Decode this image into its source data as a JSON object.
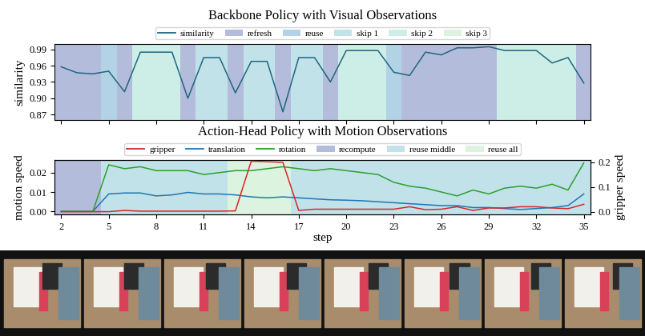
{
  "chart_data": [
    {
      "type": "line",
      "title": "Backbone Policy with Visual Observations",
      "y_label": "similarity",
      "legend": "upper center",
      "tick_labels": "y",
      "x": [
        2,
        3,
        4,
        5,
        6,
        7,
        8,
        9,
        10,
        11,
        12,
        13,
        14,
        15,
        16,
        17,
        18,
        19,
        20,
        21,
        22,
        23,
        24,
        25,
        26,
        27,
        28,
        29,
        30,
        31,
        32,
        33,
        34,
        35
      ],
      "xlim": [
        1.6,
        35.4
      ],
      "xticks": [
        2,
        5,
        8,
        11,
        14,
        17,
        20,
        23,
        26,
        29,
        32,
        35
      ],
      "ylim": [
        0.86,
        1.0
      ],
      "yticks": [
        {
          "value": 0.87,
          "label": "0.87"
        },
        {
          "value": 0.9,
          "label": "0.90"
        },
        {
          "value": 0.93,
          "label": "0.93"
        },
        {
          "value": 0.96,
          "label": "0.96"
        },
        {
          "value": 0.99,
          "label": "0.99"
        }
      ],
      "series": [
        {
          "name": "similarity",
          "color": "#1f6680",
          "values": [
            0.958,
            0.947,
            0.945,
            0.95,
            0.912,
            0.985,
            0.985,
            0.985,
            0.9,
            0.975,
            0.975,
            0.91,
            0.968,
            0.968,
            0.875,
            0.975,
            0.975,
            0.93,
            0.988,
            0.988,
            0.988,
            0.948,
            0.942,
            0.985,
            0.98,
            0.993,
            0.993,
            0.995,
            0.988,
            0.988,
            0.988,
            0.965,
            0.975,
            0.928
          ]
        },
        {
          "name": "refresh",
          "type": "span",
          "color": "#b4bcdb",
          "x": [
            2,
            3,
            4,
            6,
            10,
            13,
            16,
            19,
            24,
            25,
            26,
            27,
            28,
            29,
            35
          ]
        },
        {
          "name": "reuse",
          "type": "span",
          "color": "#b2d3e6",
          "x": [
            5,
            23
          ]
        },
        {
          "name": "skip 1",
          "type": "span",
          "color": "#c2e2ea",
          "x": [
            11,
            12,
            14,
            15,
            17,
            18
          ]
        },
        {
          "name": "skip 2",
          "type": "span",
          "color": "#cdeee6",
          "x": [
            7,
            8,
            9,
            20,
            21,
            22,
            30,
            31,
            32,
            33,
            34
          ]
        },
        {
          "name": "skip 3",
          "type": "span",
          "color": "#dcf3e0",
          "x": []
        }
      ]
    },
    {
      "type": "line",
      "title": "Action-Head Policy with Motion Observations",
      "x_label": "step",
      "y_label": "motion speed",
      "y2_label": "gripper speed",
      "legend": "upper center",
      "x": [
        2,
        3,
        4,
        5,
        6,
        7,
        8,
        9,
        10,
        11,
        12,
        13,
        14,
        15,
        16,
        17,
        18,
        19,
        20,
        21,
        22,
        23,
        24,
        25,
        26,
        27,
        28,
        29,
        30,
        31,
        32,
        33,
        34,
        35
      ],
      "xlim": [
        1.6,
        35.4
      ],
      "xticks": [
        2,
        5,
        8,
        11,
        14,
        17,
        20,
        23,
        26,
        29,
        32,
        35
      ],
      "ylim": [
        -0.0015,
        0.0265
      ],
      "yticks": [
        {
          "value": 0.0,
          "label": "0.00"
        },
        {
          "value": 0.01,
          "label": "0.01"
        },
        {
          "value": 0.02,
          "label": "0.02"
        }
      ],
      "y2lim": [
        -0.011,
        0.21
      ],
      "y2ticks": [
        0.0,
        0.1,
        0.2
      ],
      "series": [
        {
          "name": "gripper",
          "color": "#d62728",
          "axis": "y2",
          "values": [
            0,
            0,
            0,
            0,
            0.005,
            0.002,
            0.002,
            0.002,
            0.002,
            0.002,
            0.002,
            0.003,
            0.205,
            0.203,
            0.2,
            0.005,
            0.01,
            0.01,
            0.01,
            0.01,
            0.01,
            0.01,
            0.02,
            0.008,
            0.01,
            0.02,
            0.005,
            0.015,
            0.015,
            0.02,
            0.02,
            0.015,
            0.012,
            0.03
          ]
        },
        {
          "name": "translation",
          "color": "#1f77b4",
          "values": [
            0,
            0,
            0,
            0.009,
            0.0095,
            0.0095,
            0.008,
            0.0085,
            0.0098,
            0.009,
            0.009,
            0.0085,
            0.0075,
            0.007,
            0.0075,
            0.007,
            0.0065,
            0.006,
            0.0058,
            0.0055,
            0.005,
            0.0045,
            0.004,
            0.0035,
            0.003,
            0.003,
            0.002,
            0.002,
            0.0015,
            0.001,
            0.0015,
            0.002,
            0.003,
            0.009
          ]
        },
        {
          "name": "rotation",
          "color": "#2ca02c",
          "values": [
            0,
            0,
            0,
            0.024,
            0.022,
            0.023,
            0.021,
            0.021,
            0.021,
            0.019,
            0.02,
            0.021,
            0.021,
            0.022,
            0.023,
            0.022,
            0.021,
            0.022,
            0.021,
            0.02,
            0.019,
            0.015,
            0.013,
            0.012,
            0.01,
            0.008,
            0.011,
            0.009,
            0.012,
            0.013,
            0.012,
            0.014,
            0.011,
            0.025
          ]
        },
        {
          "name": "recompute",
          "type": "span",
          "color": "#b4bcdb",
          "x": [
            2,
            3,
            4
          ]
        },
        {
          "name": "reuse middle",
          "type": "span",
          "color": "#c2e2ea",
          "x": [
            5,
            6,
            7,
            8,
            9,
            10,
            11,
            12,
            17,
            18,
            19,
            20,
            21,
            22,
            23,
            24,
            25,
            26,
            27,
            28,
            29,
            30,
            31,
            32,
            33,
            34,
            35
          ]
        },
        {
          "name": "reuse all",
          "type": "span",
          "color": "#dcf3df",
          "x": [
            13,
            14,
            15,
            16
          ]
        }
      ]
    }
  ]
}
